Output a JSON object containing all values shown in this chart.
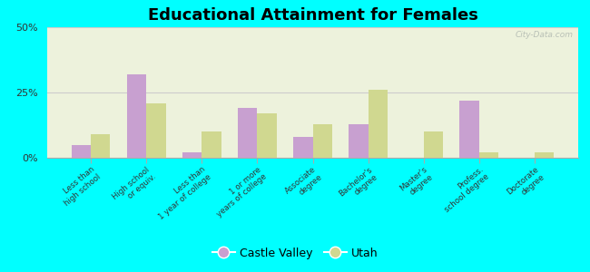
{
  "title": "Educational Attainment for Females",
  "categories": [
    "Less than\nhigh school",
    "High school\nor equiv.",
    "Less than\n1 year of college",
    "1 or more\nyears of college",
    "Associate\ndegree",
    "Bachelor's\ndegree",
    "Master's\ndegree",
    "Profess.\nschool degree",
    "Doctorate\ndegree"
  ],
  "castle_valley": [
    5,
    32,
    2,
    19,
    8,
    13,
    0,
    22,
    0
  ],
  "utah": [
    9,
    21,
    10,
    17,
    13,
    26,
    10,
    2,
    2
  ],
  "castle_valley_color": "#c8a0d0",
  "utah_color": "#d0d890",
  "background_color": "#00ffff",
  "plot_bg": "#edf2dc",
  "ylim": [
    0,
    50
  ],
  "yticks": [
    0,
    25,
    50
  ],
  "ytick_labels": [
    "0%",
    "25%",
    "50%"
  ],
  "grid_color": "#cccccc",
  "bar_width": 0.35,
  "legend_castle_valley": "Castle Valley",
  "legend_utah": "Utah",
  "watermark": "City-Data.com"
}
